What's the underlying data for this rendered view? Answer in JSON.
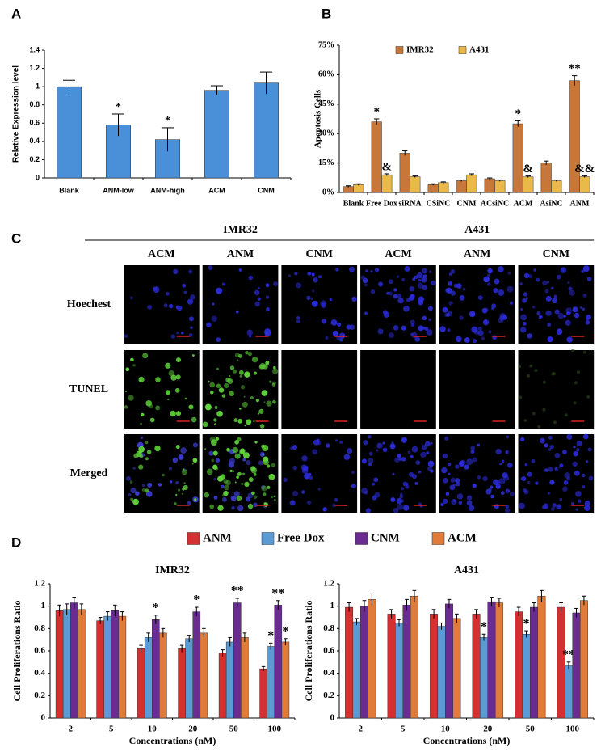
{
  "chart_data": [
    {
      "type": "bar",
      "panel": "A",
      "ylabel": "Relative Expression level",
      "categories": [
        "Blank",
        "ANM-low",
        "ANM-high",
        "ACM",
        "CNM"
      ],
      "values": [
        1.0,
        0.58,
        0.42,
        0.96,
        1.04
      ],
      "errors": [
        0.07,
        0.12,
        0.13,
        0.05,
        0.12
      ],
      "annotations": [
        null,
        "*",
        "*",
        null,
        null
      ],
      "color": "#4a90d9",
      "ylim": [
        0,
        1.4
      ],
      "yticks": [
        0,
        0.2,
        0.4,
        0.6,
        0.8,
        1,
        1.2,
        1.4
      ]
    },
    {
      "type": "bar",
      "panel": "B",
      "ylabel": "Apoptosis Cells",
      "categories": [
        "Blank",
        "Free Dox",
        "siRNA",
        "CSiNC",
        "CNM",
        "ACsiNC",
        "ACM",
        "AsiNC",
        "ANM"
      ],
      "series": [
        {
          "name": "IMR32",
          "color": "#c8773a",
          "values": [
            3,
            36,
            20,
            4,
            6,
            7,
            35,
            15,
            57
          ],
          "errors": [
            0.4,
            1.5,
            1.2,
            0.4,
            0.4,
            0.4,
            1.5,
            1,
            2.5
          ],
          "annotations": [
            null,
            "*",
            null,
            null,
            null,
            null,
            "*",
            null,
            "**"
          ]
        },
        {
          "name": "A431",
          "color": "#e9b949",
          "values": [
            4,
            9,
            8,
            5,
            9,
            6,
            8,
            6,
            8
          ],
          "errors": [
            0.4,
            0.5,
            0.4,
            0.4,
            0.5,
            0.4,
            0.4,
            0.4,
            0.4
          ],
          "annotations": [
            null,
            "&",
            null,
            null,
            null,
            null,
            "&",
            null,
            "&&"
          ]
        }
      ],
      "ylim": [
        0,
        75
      ],
      "yticks": [
        {
          "value": 0,
          "label": "0%"
        },
        {
          "value": 15,
          "label": "15%"
        },
        {
          "value": 30,
          "label": "30%"
        },
        {
          "value": 45,
          "label": "45%"
        },
        {
          "value": 60,
          "label": "60%"
        },
        {
          "value": 75,
          "label": "75%"
        }
      ]
    },
    {
      "type": "bar",
      "panel": "D",
      "title": "IMR32",
      "ylabel": "Cell Proliferations Ratio",
      "xlabel": "Concentrations (nM)",
      "categories": [
        "2",
        "5",
        "10",
        "20",
        "50",
        "100"
      ],
      "series": [
        {
          "name": "ANM",
          "color": "#d62f2f",
          "values": [
            0.96,
            0.87,
            0.62,
            0.62,
            0.58,
            0.44
          ],
          "errors": [
            0.05,
            0.03,
            0.03,
            0.03,
            0.03,
            0.02
          ],
          "annotations": [
            null,
            null,
            null,
            null,
            null,
            null
          ]
        },
        {
          "name": "Free Dox",
          "color": "#5b9bd5",
          "values": [
            0.97,
            0.91,
            0.72,
            0.71,
            0.68,
            0.64
          ],
          "errors": [
            0.05,
            0.04,
            0.04,
            0.03,
            0.04,
            0.03
          ],
          "annotations": [
            null,
            null,
            null,
            null,
            null,
            "*"
          ]
        },
        {
          "name": "CNM",
          "color": "#6a2c91",
          "values": [
            1.03,
            0.96,
            0.88,
            0.95,
            1.03,
            1.01
          ],
          "errors": [
            0.05,
            0.05,
            0.04,
            0.04,
            0.04,
            0.04
          ],
          "annotations": [
            null,
            null,
            "*",
            "*",
            "**",
            "**"
          ]
        },
        {
          "name": "ACM",
          "color": "#e07b39",
          "values": [
            0.97,
            0.91,
            0.76,
            0.76,
            0.72,
            0.68
          ],
          "errors": [
            0.05,
            0.04,
            0.04,
            0.04,
            0.04,
            0.03
          ],
          "annotations": [
            null,
            null,
            null,
            null,
            null,
            "*"
          ]
        }
      ],
      "ylim": [
        0,
        1.2
      ],
      "yticks": [
        0,
        0.2,
        0.4,
        0.6,
        0.8,
        1,
        1.2
      ]
    },
    {
      "type": "bar",
      "title": "A431",
      "ylabel": "Cell Proliferations Ratio",
      "xlabel": "Concentrations (nM)",
      "categories": [
        "2",
        "5",
        "10",
        "20",
        "50",
        "100"
      ],
      "series": [
        {
          "color": "#d62f2f",
          "values": [
            0.99,
            0.93,
            0.93,
            0.93,
            0.95,
            0.99
          ],
          "errors": [
            0.04,
            0.04,
            0.04,
            0.04,
            0.04,
            0.04
          ],
          "annotations": [
            null,
            null,
            null,
            null,
            null,
            null
          ]
        },
        {
          "color": "#5b9bd5",
          "values": [
            0.86,
            0.85,
            0.82,
            0.72,
            0.75,
            0.47
          ],
          "errors": [
            0.03,
            0.03,
            0.03,
            0.03,
            0.03,
            0.03
          ],
          "annotations": [
            null,
            null,
            null,
            "*",
            "*",
            "**"
          ]
        },
        {
          "color": "#6a2c91",
          "values": [
            1.0,
            1.01,
            1.02,
            1.04,
            0.99,
            0.94
          ],
          "errors": [
            0.05,
            0.05,
            0.04,
            0.04,
            0.04,
            0.04
          ],
          "annotations": [
            null,
            null,
            null,
            null,
            null,
            null
          ]
        },
        {
          "color": "#e07b39",
          "values": [
            1.06,
            1.09,
            0.89,
            1.03,
            1.09,
            1.05
          ],
          "errors": [
            0.05,
            0.05,
            0.04,
            0.04,
            0.05,
            0.04
          ],
          "annotations": [
            null,
            null,
            null,
            null,
            null,
            null
          ]
        }
      ],
      "ylim": [
        0,
        1.2
      ],
      "yticks": [
        0,
        0.2,
        0.4,
        0.6,
        0.8,
        1,
        1.2
      ]
    }
  ],
  "microscopy": {
    "panel": "C",
    "groups": [
      "IMR32",
      "A431"
    ],
    "columns": [
      "ACM",
      "ANM",
      "CNM",
      "ACM",
      "ANM",
      "CNM"
    ],
    "rows": [
      "Hoechest",
      "TUNEL",
      "Merged"
    ]
  }
}
